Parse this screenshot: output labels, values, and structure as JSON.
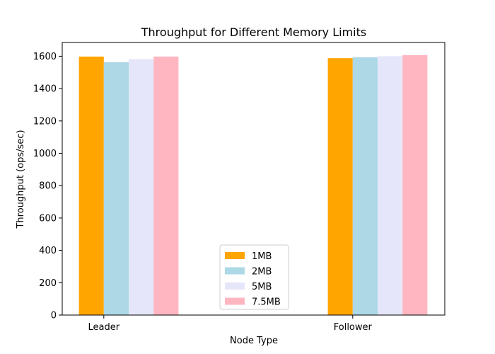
{
  "chart_data": {
    "type": "bar",
    "title": "Throughput for Different Memory Limits",
    "xlabel": "Node Type",
    "ylabel": "Throughput (ops/sec)",
    "categories": [
      "Leader",
      "Follower"
    ],
    "ylim": [
      0,
      1685
    ],
    "yticks": [
      0,
      200,
      400,
      600,
      800,
      1000,
      1200,
      1400,
      1600
    ],
    "grid": false,
    "legend_position": "lower-center",
    "series": [
      {
        "name": "1MB",
        "color": "#FFA500",
        "values": [
          1598,
          1588
        ]
      },
      {
        "name": "2MB",
        "color": "#ADD8E6",
        "values": [
          1563,
          1594
        ]
      },
      {
        "name": "5MB",
        "color": "#E6E6FA",
        "values": [
          1583,
          1600
        ]
      },
      {
        "name": "7.5MB",
        "color": "#FFB6C1",
        "values": [
          1598,
          1607
        ]
      }
    ]
  }
}
